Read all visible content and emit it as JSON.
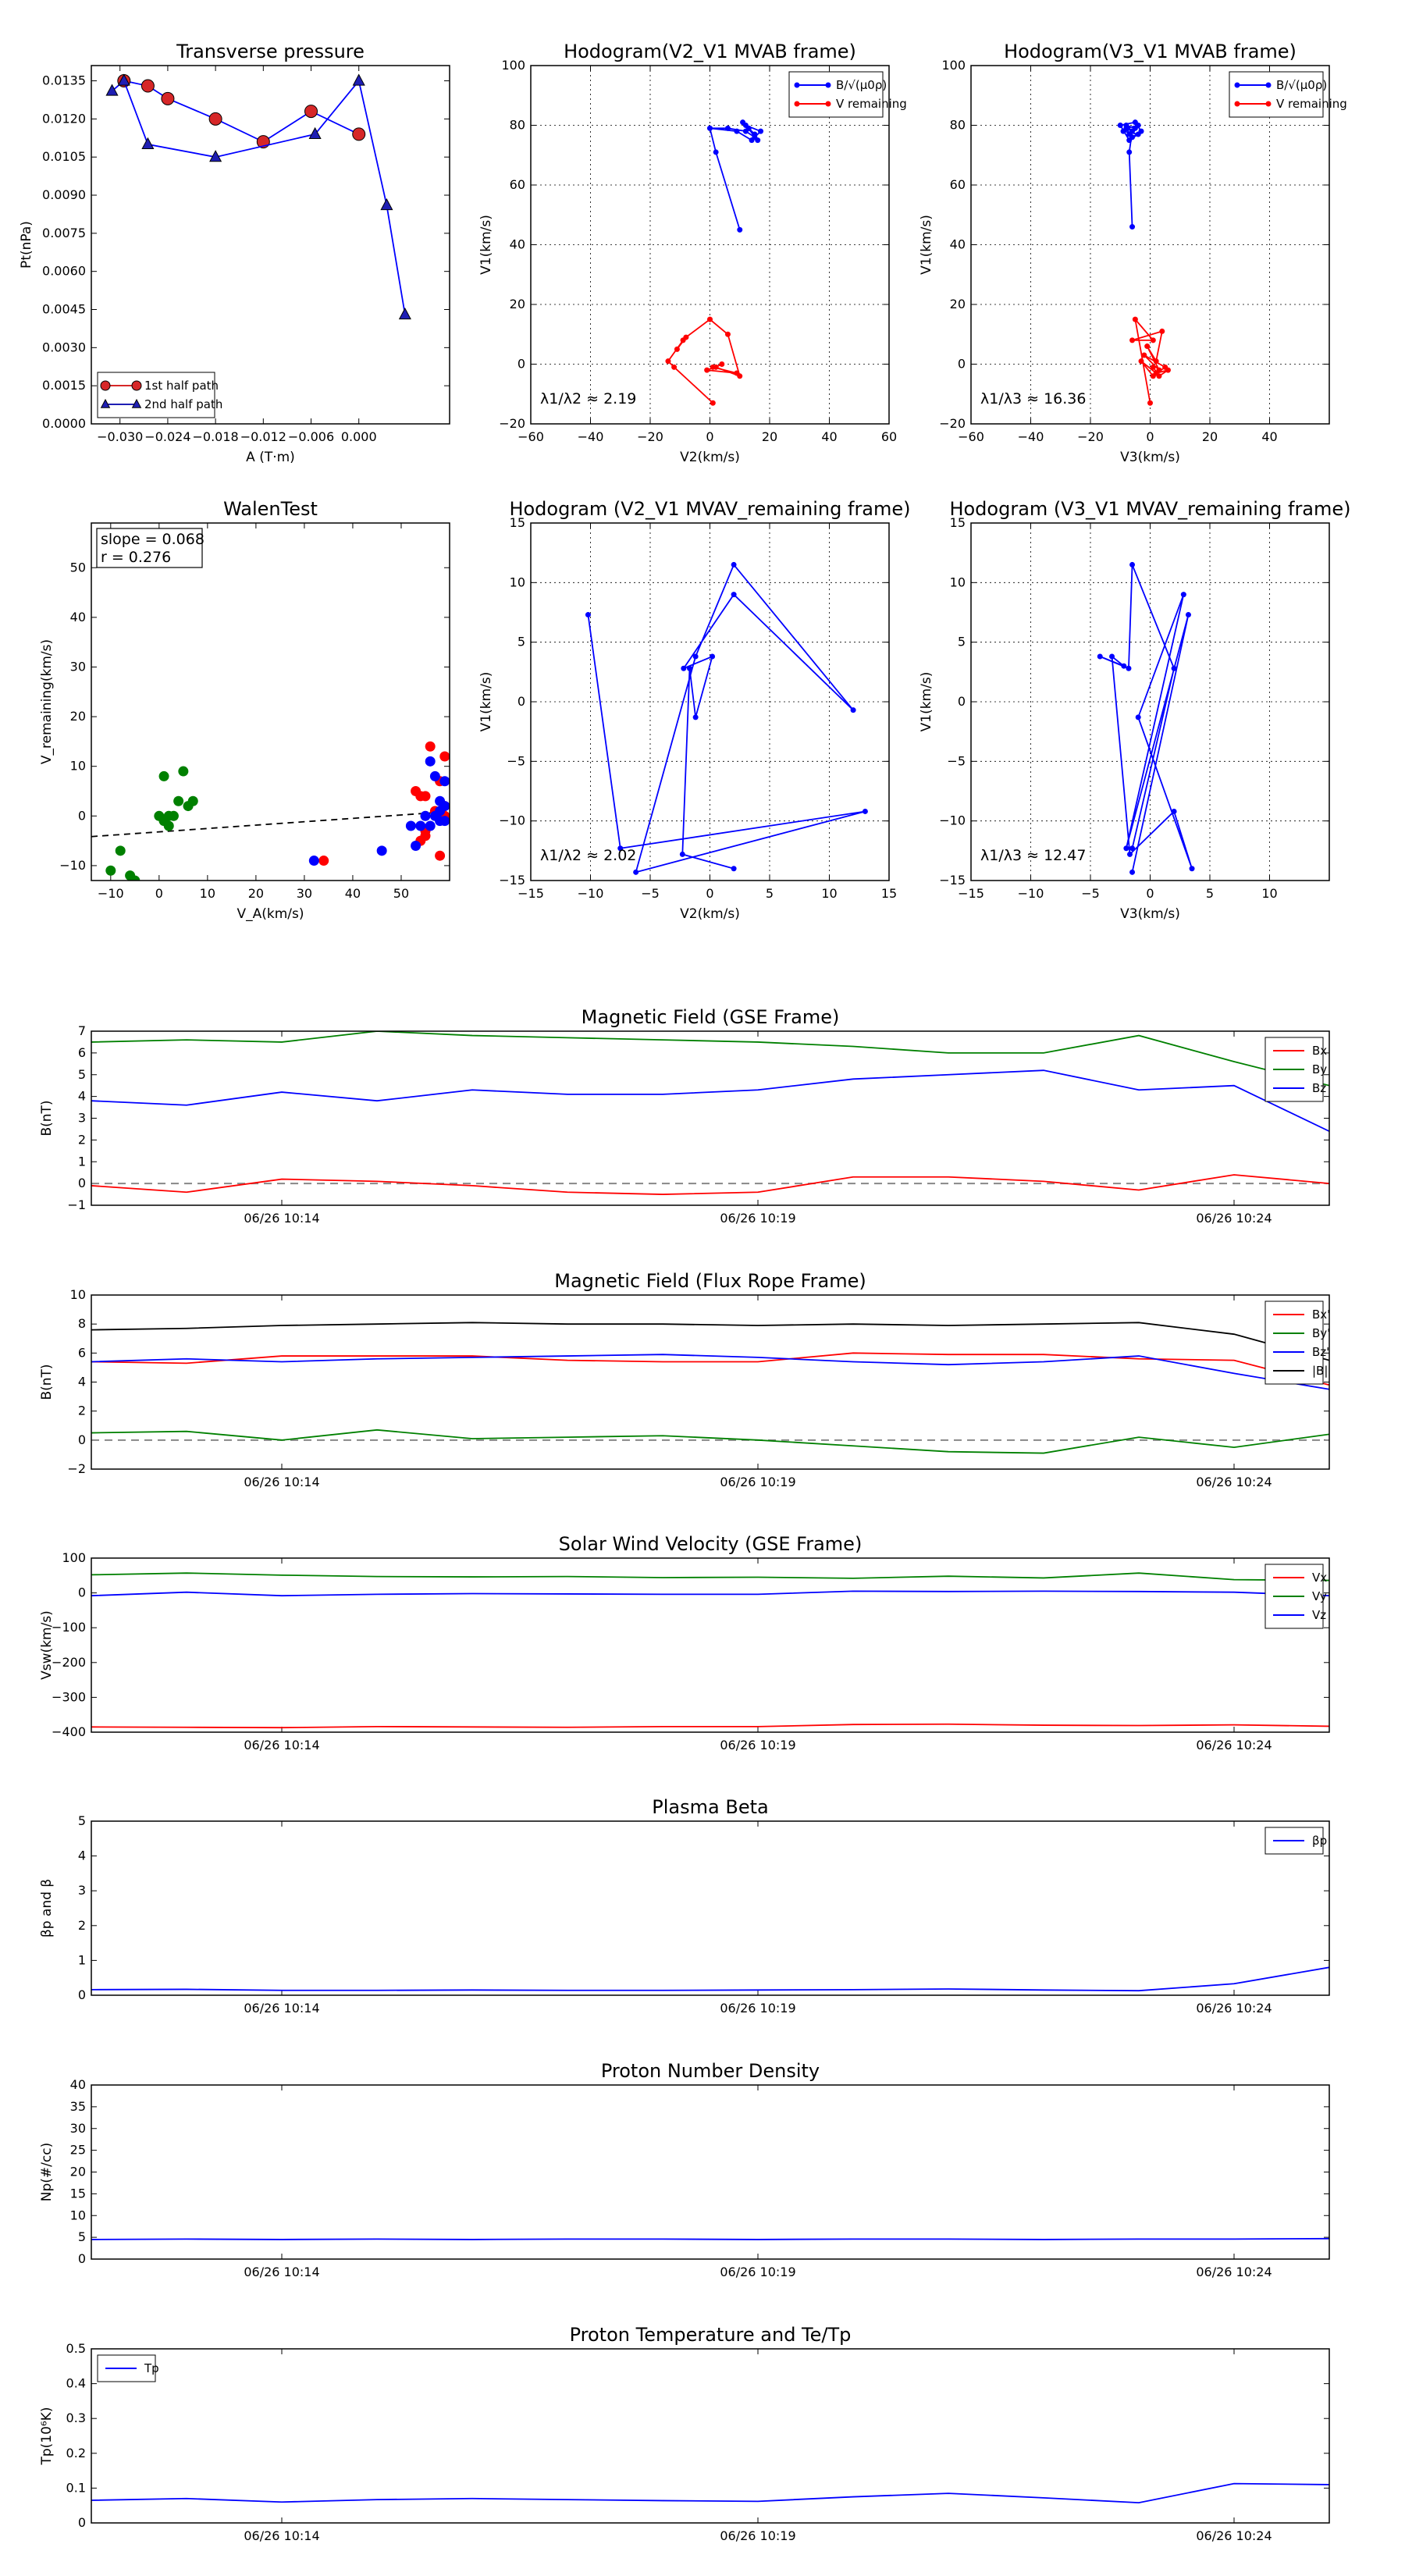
{
  "chart_data": [
    {
      "id": "transverse_pressure",
      "type": "line",
      "title": "Transverse pressure",
      "xlabel": "A (T·m)",
      "ylabel": "Pt(nPa)",
      "xlim": [
        -0.0336,
        0.0114
      ],
      "ylim": [
        0,
        0.0141
      ],
      "xticks": [
        -0.03,
        -0.024,
        -0.018,
        -0.012,
        -0.006,
        0.0
      ],
      "xtick_labels": [
        "−0.030",
        "−0.024",
        "−0.018",
        "−0.012",
        "−0.006",
        "0.000"
      ],
      "yticks": [
        0,
        0.0015,
        0.003,
        0.0045,
        0.006,
        0.0075,
        0.009,
        0.0105,
        0.012,
        0.0135
      ],
      "ytick_labels": [
        "0.0000",
        "0.0015",
        "0.0030",
        "0.0045",
        "0.0060",
        "0.0075",
        "0.0090",
        "0.0105",
        "0.0120",
        "0.0135"
      ],
      "legend_position": "bottom-left",
      "series": [
        {
          "name": "1st half path",
          "color": "#d62728",
          "marker": "circle",
          "x": [
            -0.0295,
            -0.0265,
            -0.024,
            -0.018,
            -0.012,
            -0.006,
            0.0
          ],
          "y": [
            0.0135,
            0.0133,
            0.0128,
            0.012,
            0.0111,
            0.0123,
            0.0114
          ]
        },
        {
          "name": "2nd half path",
          "color": "#1f1fb4",
          "marker": "triangle",
          "x": [
            -0.031,
            -0.0295,
            -0.0265,
            -0.018,
            -0.0055,
            0.0,
            0.0035,
            0.0058
          ],
          "y": [
            0.0131,
            0.0135,
            0.011,
            0.0105,
            0.0114,
            0.0135,
            0.0086,
            0.0043
          ]
        }
      ]
    },
    {
      "id": "hodogram_mvab_v2",
      "type": "line",
      "title": "Hodogram(V2_V1 MVAB frame)",
      "xlabel": "V2(km/s)",
      "ylabel": "V1(km/s)",
      "xlim": [
        -60,
        60
      ],
      "ylim": [
        -20,
        100
      ],
      "xticks": [
        -60,
        -40,
        -20,
        0,
        20,
        40,
        60
      ],
      "yticks": [
        -20,
        0,
        20,
        40,
        60,
        80,
        100
      ],
      "legend_position": "top-right",
      "annotation": "λ1/λ2 ≈ 2.19",
      "series": [
        {
          "name": "B/√(μ0ρ)",
          "color": "#0000ff",
          "x": [
            10,
            2,
            0,
            6,
            12,
            15,
            13,
            11,
            15,
            13,
            16,
            12,
            17,
            14,
            9,
            0
          ],
          "y": [
            45,
            71,
            79,
            79,
            78,
            76,
            79,
            81,
            77,
            79,
            75,
            80,
            78,
            75,
            78,
            79
          ]
        },
        {
          "name": "V remaining",
          "color": "#ff0000",
          "x": [
            1,
            -12,
            -14,
            -9,
            -11,
            -8,
            0,
            6,
            10,
            2,
            4,
            -1,
            9,
            1
          ],
          "y": [
            -13,
            -1,
            1,
            8,
            5,
            9,
            15,
            10,
            -4,
            -1,
            0,
            -2,
            -3,
            -1
          ]
        }
      ]
    },
    {
      "id": "hodogram_mvab_v3",
      "type": "line",
      "title": "Hodogram(V3_V1 MVAB frame)",
      "xlabel": "V3(km/s)",
      "ylabel": "V1(km/s)",
      "xlim": [
        -60,
        60
      ],
      "ylim": [
        -20,
        100
      ],
      "xticks": [
        -60,
        -40,
        -20,
        0,
        20,
        40
      ],
      "yticks": [
        -20,
        0,
        20,
        40,
        60,
        80,
        100
      ],
      "legend_position": "top-right",
      "annotation": "λ1/λ3 ≈ 16.36",
      "series": [
        {
          "name": "B/√(μ0ρ)",
          "color": "#0000ff",
          "x": [
            -6,
            -7,
            -6,
            -8,
            -5,
            -9,
            -4,
            -7,
            -10,
            -5,
            -3,
            -6,
            -8,
            -4,
            -7
          ],
          "y": [
            46,
            71,
            78,
            80,
            79,
            78,
            77,
            75,
            80,
            81,
            78,
            76,
            79,
            80,
            77
          ]
        },
        {
          "name": "V remaining",
          "color": "#ff0000",
          "x": [
            0,
            -5,
            1,
            -6,
            4,
            2,
            -1,
            3,
            -2,
            5,
            1,
            -3,
            2,
            6,
            3,
            1
          ],
          "y": [
            -13,
            15,
            8,
            8,
            11,
            1,
            6,
            -2,
            3,
            -1,
            -4,
            1,
            -3,
            -2,
            -4,
            -1
          ]
        }
      ]
    },
    {
      "id": "walen_test",
      "type": "scatter",
      "title": "WalenTest",
      "xlabel": "V_A(km/s)",
      "ylabel": "V_remaining(km/s)",
      "xlim": [
        -14,
        60
      ],
      "ylim": [
        -13,
        59
      ],
      "xticks": [
        -10,
        0,
        10,
        20,
        30,
        40,
        50
      ],
      "yticks": [
        -10,
        0,
        10,
        20,
        30,
        40,
        50
      ],
      "slope_text": "slope = 0.068",
      "r_text": "r = 0.276",
      "fit_line": {
        "slope": 0.068,
        "intercept": -3.2
      },
      "series": [
        {
          "name": "green",
          "color": "#008000",
          "x": [
            -10,
            -8,
            -6,
            -5,
            0,
            1,
            1,
            2,
            2,
            3,
            4,
            5,
            6,
            7
          ],
          "y": [
            -11,
            -7,
            -12,
            -13,
            0,
            8,
            -1,
            0,
            -2,
            0,
            3,
            9,
            2,
            3
          ]
        },
        {
          "name": "red",
          "color": "#ff0000",
          "x": [
            34,
            53,
            54,
            55,
            55,
            56,
            57,
            58,
            58,
            59,
            59,
            59,
            54,
            55
          ],
          "y": [
            -9,
            5,
            4,
            -4,
            4,
            14,
            1,
            7,
            -8,
            12,
            2,
            0,
            -5,
            -3
          ]
        },
        {
          "name": "blue",
          "color": "#0000ff",
          "x": [
            32,
            46,
            52,
            53,
            54,
            55,
            56,
            56,
            57,
            57,
            58,
            58,
            58,
            59,
            59,
            59
          ],
          "y": [
            -9,
            -7,
            -2,
            -6,
            -2,
            0,
            -2,
            11,
            0,
            8,
            3,
            1,
            -1,
            7,
            2,
            -1
          ]
        }
      ]
    },
    {
      "id": "hodogram_mvav_v2",
      "type": "line",
      "title": "Hodogram (V2_V1 MVAV_remaining frame)",
      "xlabel": "V2(km/s)",
      "ylabel": "V1(km/s)",
      "xlim": [
        -15,
        15
      ],
      "ylim": [
        -15,
        15
      ],
      "xticks": [
        -15,
        -10,
        -5,
        0,
        5,
        10,
        15
      ],
      "yticks": [
        -15,
        -10,
        -5,
        0,
        5,
        10,
        15
      ],
      "annotation": "λ1/λ2 ≈ 2.02",
      "series": [
        {
          "name": "V",
          "color": "#0000ff",
          "x": [
            -10.2,
            -7.5,
            13,
            -6.2,
            -1.2,
            2,
            12,
            2,
            -2.2,
            0.2,
            -1.2,
            -1.7,
            -2.3,
            2
          ],
          "y": [
            7.3,
            -12.3,
            -9.2,
            -14.3,
            3.8,
            11.5,
            -0.7,
            9,
            2.8,
            3.8,
            -1.3,
            2.8,
            -12.8,
            -14
          ]
        }
      ]
    },
    {
      "id": "hodogram_mvav_v3",
      "type": "line",
      "title": "Hodogram (V3_V1 MVAV_remaining frame)",
      "xlabel": "V3(km/s)",
      "ylabel": "V1(km/s)",
      "xlim": [
        -15,
        15
      ],
      "ylim": [
        -15,
        15
      ],
      "xticks": [
        -15,
        -10,
        -5,
        0,
        5,
        10
      ],
      "yticks": [
        -15,
        -10,
        -5,
        0,
        5,
        10,
        15
      ],
      "annotation": "λ1/λ3 ≈ 12.47",
      "series": [
        {
          "name": "V",
          "color": "#0000ff",
          "x": [
            -1.5,
            3.2,
            -2,
            2.8,
            -1,
            3.5,
            2,
            -1.7,
            -3.2,
            -2.2,
            -4.2,
            -1.8,
            -1.5,
            2,
            -1.5
          ],
          "y": [
            -14.3,
            7.3,
            -12.3,
            9,
            -1.3,
            -14,
            -9.2,
            -12.8,
            3.8,
            3,
            3.8,
            2.8,
            11.5,
            2.8,
            -12.3
          ]
        }
      ]
    },
    {
      "id": "b_gse",
      "type": "line",
      "title": "Magnetic Field (GSE Frame)",
      "ylabel": "B(nT)",
      "ylim": [
        -1,
        7
      ],
      "yticks": [
        -1,
        0,
        1,
        2,
        3,
        4,
        5,
        6,
        7
      ],
      "x_minutes": [
        0,
        1,
        2,
        3,
        4,
        5,
        6,
        7,
        8,
        9,
        10,
        11,
        12,
        13
      ],
      "xlim": [
        0,
        13
      ],
      "xticks": [
        2,
        7,
        12
      ],
      "xtick_labels": [
        "06/26 10:14",
        "06/26 10:19",
        "06/26 10:24"
      ],
      "zero_line": 0,
      "legend_position": "top-right",
      "series": [
        {
          "name": "Bx",
          "color": "#ff0000",
          "values": [
            -0.1,
            -0.4,
            0.2,
            0.1,
            -0.1,
            -0.4,
            -0.5,
            -0.4,
            0.3,
            0.3,
            0.1,
            -0.3,
            0.4,
            0.0
          ]
        },
        {
          "name": "By",
          "color": "#008000",
          "values": [
            6.5,
            6.6,
            6.5,
            7.0,
            6.8,
            6.7,
            6.6,
            6.5,
            6.3,
            6.0,
            6.0,
            6.8,
            5.6,
            4.5
          ]
        },
        {
          "name": "Bz",
          "color": "#0000ff",
          "values": [
            3.8,
            3.6,
            4.2,
            3.8,
            4.3,
            4.1,
            4.1,
            4.3,
            4.8,
            5.0,
            5.2,
            4.3,
            4.5,
            2.4
          ]
        }
      ]
    },
    {
      "id": "b_fluxrope",
      "type": "line",
      "title": "Magnetic Field (Flux Rope Frame)",
      "ylabel": "B(nT)",
      "ylim": [
        -2,
        10
      ],
      "yticks": [
        -2,
        0,
        2,
        4,
        6,
        8,
        10
      ],
      "x_minutes": [
        0,
        1,
        2,
        3,
        4,
        5,
        6,
        7,
        8,
        9,
        10,
        11,
        12,
        13
      ],
      "xlim": [
        0,
        13
      ],
      "xticks": [
        2,
        7,
        12
      ],
      "xtick_labels": [
        "06/26 10:14",
        "06/26 10:19",
        "06/26 10:24"
      ],
      "zero_line": 0,
      "legend_position": "top-right",
      "series": [
        {
          "name": "Bx'",
          "color": "#ff0000",
          "values": [
            5.4,
            5.3,
            5.8,
            5.8,
            5.8,
            5.5,
            5.4,
            5.4,
            6.0,
            5.9,
            5.9,
            5.6,
            5.5,
            3.8
          ]
        },
        {
          "name": "By'",
          "color": "#008000",
          "values": [
            0.5,
            0.6,
            0.0,
            0.7,
            0.1,
            0.2,
            0.3,
            0.0,
            -0.4,
            -0.8,
            -0.9,
            0.2,
            -0.5,
            0.4
          ]
        },
        {
          "name": "Bz'",
          "color": "#0000ff",
          "values": [
            5.4,
            5.6,
            5.4,
            5.6,
            5.7,
            5.8,
            5.9,
            5.7,
            5.4,
            5.2,
            5.4,
            5.8,
            4.6,
            3.5
          ]
        },
        {
          "name": "|B|",
          "color": "#000000",
          "values": [
            7.6,
            7.7,
            7.9,
            8.0,
            8.1,
            8.0,
            8.0,
            7.9,
            8.0,
            7.9,
            8.0,
            8.1,
            7.3,
            5.5
          ]
        }
      ]
    },
    {
      "id": "vsw_gse",
      "type": "line",
      "title": "Solar Wind Velocity (GSE Frame)",
      "ylabel": "Vsw(km/s)",
      "ylim": [
        -400,
        100
      ],
      "yticks": [
        -400,
        -300,
        -200,
        -100,
        0,
        100
      ],
      "x_minutes": [
        0,
        1,
        2,
        3,
        4,
        5,
        6,
        7,
        8,
        9,
        10,
        11,
        12,
        13
      ],
      "xlim": [
        0,
        13
      ],
      "xticks": [
        2,
        7,
        12
      ],
      "xtick_labels": [
        "06/26 10:14",
        "06/26 10:19",
        "06/26 10:24"
      ],
      "legend_position": "top-right",
      "series": [
        {
          "name": "Vx",
          "color": "#ff0000",
          "values": [
            -385,
            -386,
            -387,
            -384,
            -385,
            -386,
            -384,
            -384,
            -378,
            -377,
            -380,
            -381,
            -379,
            -383
          ]
        },
        {
          "name": "Vy",
          "color": "#008000",
          "values": [
            52,
            57,
            51,
            47,
            46,
            47,
            44,
            45,
            42,
            48,
            43,
            57,
            38,
            36
          ]
        },
        {
          "name": "Vz",
          "color": "#0000ff",
          "values": [
            -8,
            2,
            -8,
            -4,
            -2,
            -3,
            -4,
            -4,
            5,
            4,
            5,
            4,
            2,
            -8
          ]
        }
      ]
    },
    {
      "id": "plasma_beta",
      "type": "line",
      "title": "Plasma Beta",
      "ylabel": "βp and β",
      "ylim": [
        0,
        5
      ],
      "yticks": [
        0,
        1,
        2,
        3,
        4,
        5
      ],
      "x_minutes": [
        0,
        1,
        2,
        3,
        4,
        5,
        6,
        7,
        8,
        9,
        10,
        11,
        12,
        13
      ],
      "xlim": [
        0,
        13
      ],
      "xticks": [
        2,
        7,
        12
      ],
      "xtick_labels": [
        "06/26 10:14",
        "06/26 10:19",
        "06/26 10:24"
      ],
      "legend_position": "top-right",
      "series": [
        {
          "name": "βp",
          "color": "#0000ff",
          "values": [
            0.16,
            0.17,
            0.14,
            0.14,
            0.15,
            0.14,
            0.14,
            0.15,
            0.16,
            0.18,
            0.15,
            0.13,
            0.33,
            0.8
          ]
        }
      ]
    },
    {
      "id": "proton_density",
      "type": "line",
      "title": "Proton Number Density",
      "ylabel": "Np(#/cc)",
      "ylim": [
        0,
        40
      ],
      "yticks": [
        0,
        5,
        10,
        15,
        20,
        25,
        30,
        35,
        40
      ],
      "x_minutes": [
        0,
        1,
        2,
        3,
        4,
        5,
        6,
        7,
        8,
        9,
        10,
        11,
        12,
        13
      ],
      "xlim": [
        0,
        13
      ],
      "xticks": [
        2,
        7,
        12
      ],
      "xtick_labels": [
        "06/26 10:14",
        "06/26 10:19",
        "06/26 10:24"
      ],
      "series": [
        {
          "name": "Np",
          "color": "#0000ff",
          "values": [
            4.5,
            4.6,
            4.5,
            4.6,
            4.5,
            4.6,
            4.6,
            4.5,
            4.6,
            4.6,
            4.5,
            4.6,
            4.6,
            4.7
          ]
        }
      ]
    },
    {
      "id": "proton_temperature",
      "type": "line",
      "title": "Proton Temperature and Te/Tp",
      "ylabel": "Tp(10⁶K)",
      "ylim": [
        0,
        0.5
      ],
      "yticks": [
        0,
        0.1,
        0.2,
        0.3,
        0.4,
        0.5
      ],
      "x_minutes": [
        0,
        1,
        2,
        3,
        4,
        5,
        6,
        7,
        8,
        9,
        10,
        11,
        12,
        13
      ],
      "xlim": [
        0,
        13
      ],
      "xticks": [
        2,
        7,
        12
      ],
      "xtick_labels": [
        "06/26 10:14",
        "06/26 10:19",
        "06/26 10:24"
      ],
      "legend_position": "top-left",
      "series": [
        {
          "name": "Tp",
          "color": "#0000ff",
          "values": [
            0.065,
            0.07,
            0.06,
            0.067,
            0.07,
            0.067,
            0.064,
            0.062,
            0.075,
            0.085,
            0.072,
            0.058,
            0.113,
            0.11
          ]
        }
      ]
    }
  ]
}
